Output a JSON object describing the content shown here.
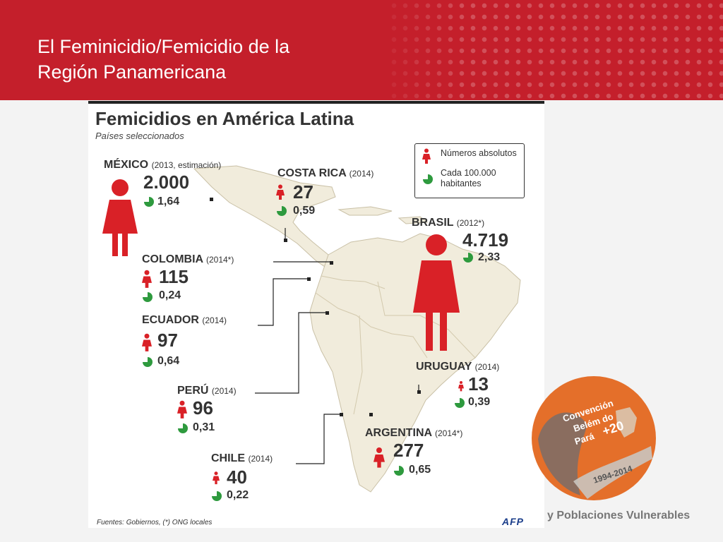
{
  "slide": {
    "title_line1": "El Feminicidio/Femicidio de la",
    "title_line2": "Región Panamericana",
    "footer_text": "y Poblaciones Vulnerables"
  },
  "infographic": {
    "title": "Femicidios en América Latina",
    "subtitle": "Países seleccionados",
    "legend": {
      "absolute": "Números absolutos",
      "per_capita": "Cada 100.000 habitantes"
    },
    "countries": [
      {
        "name": "MÉXICO",
        "year": "(2013, estimación)",
        "absolute": "2.000",
        "rate": "1,64"
      },
      {
        "name": "COSTA RICA",
        "year": "(2014)",
        "absolute": "27",
        "rate": "0,59"
      },
      {
        "name": "BRASIL",
        "year": "(2012*)",
        "absolute": "4.719",
        "rate": "2,33"
      },
      {
        "name": "COLOMBIA",
        "year": "(2014*)",
        "absolute": "115",
        "rate": "0,24"
      },
      {
        "name": "ECUADOR",
        "year": "(2014)",
        "absolute": "97",
        "rate": "0,64"
      },
      {
        "name": "URUGUAY",
        "year": "(2014)",
        "absolute": "13",
        "rate": "0,39"
      },
      {
        "name": "PERÚ",
        "year": "(2014)",
        "absolute": "96",
        "rate": "0,31"
      },
      {
        "name": "ARGENTINA",
        "year": "(2014*)",
        "absolute": "277",
        "rate": "0,65"
      },
      {
        "name": "CHILE",
        "year": "(2014)",
        "absolute": "40",
        "rate": "0,22"
      }
    ],
    "source": "Fuentes: Gobiernos, (*) ONG locales",
    "agency": "AFP",
    "colors": {
      "red": "#d92127",
      "green": "#2e9a3e",
      "land": "#f1ecdc"
    }
  },
  "logo": {
    "line1": "Convención",
    "line2": "Belém do",
    "line3": "Pará",
    "plus": "+20",
    "years": "1994-2014"
  }
}
